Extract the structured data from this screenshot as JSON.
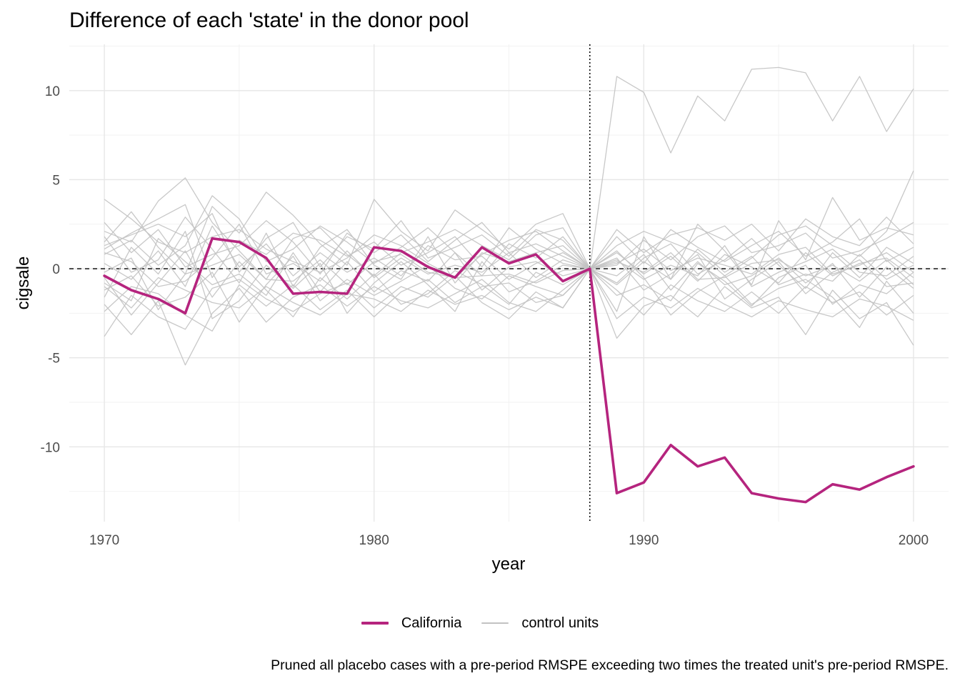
{
  "chart_data": {
    "type": "line",
    "title": "Difference of each 'state' in the donor pool",
    "xlabel": "year",
    "ylabel": "cigsale",
    "caption": "Pruned all placebo cases with a pre-period RMSPE exceeding two times the treated unit's pre-period RMSPE.",
    "xlim": [
      1968.7,
      2001.3
    ],
    "ylim": [
      -14.2,
      12.6
    ],
    "x_ticks": [
      1970,
      1980,
      1990,
      2000
    ],
    "y_ticks": [
      -10,
      -5,
      0,
      5,
      10
    ],
    "treatment_year": 1988,
    "reference_line_y": 0,
    "grid": true,
    "legend_position": "bottom",
    "colors": {
      "treated": "#b5247e",
      "control": "#c2c2c2"
    },
    "legend": [
      {
        "label": "California",
        "style": "thick",
        "color": "#b5247e"
      },
      {
        "label": "control units",
        "style": "thin",
        "color": "#c2c2c2"
      }
    ],
    "x": [
      1970,
      1971,
      1972,
      1973,
      1974,
      1975,
      1976,
      1977,
      1978,
      1979,
      1980,
      1981,
      1982,
      1983,
      1984,
      1985,
      1986,
      1987,
      1988,
      1989,
      1990,
      1991,
      1992,
      1993,
      1994,
      1995,
      1996,
      1997,
      1998,
      1999,
      2000
    ],
    "series": [
      {
        "name": "California",
        "treated": true,
        "values": [
          -0.4,
          -1.2,
          -1.7,
          -2.5,
          1.7,
          1.5,
          0.6,
          -1.4,
          -1.3,
          -1.4,
          1.2,
          1.0,
          0.1,
          -0.5,
          1.2,
          0.3,
          0.8,
          -0.7,
          0.0,
          -12.6,
          -12.0,
          -9.9,
          -11.1,
          -10.6,
          -12.6,
          -12.9,
          -13.1,
          -12.1,
          -12.4,
          -11.7,
          -11.1
        ]
      },
      {
        "values": [
          3.9,
          2.8,
          1.5,
          0.9,
          1.8,
          2.2,
          1.1,
          0.4,
          -0.2,
          0.6,
          1.9,
          1.3,
          0.3,
          -0.5,
          0.8,
          1.6,
          2.1,
          1.0,
          0.0,
          10.8,
          9.9,
          6.5,
          9.7,
          8.3,
          11.2,
          11.3,
          11.0,
          8.3,
          10.8,
          7.7,
          10.1
        ]
      },
      {
        "values": [
          2.1,
          1.5,
          3.8,
          5.1,
          2.6,
          1.0,
          -0.6,
          1.7,
          2.3,
          0.8,
          -0.4,
          0.9,
          1.5,
          2.2,
          1.3,
          0.5,
          1.9,
          2.3,
          0.0,
          1.3,
          2.1,
          1.5,
          0.9,
          -0.4,
          0.6,
          1.9,
          2.4,
          1.3,
          0.7,
          2.1,
          5.5
        ]
      },
      {
        "values": [
          -2.0,
          -3.7,
          -1.8,
          -5.4,
          -2.5,
          -1.1,
          -3.0,
          -1.6,
          -0.9,
          -2.1,
          -1.0,
          -1.8,
          -2.2,
          -1.4,
          -0.6,
          -1.9,
          -2.4,
          -1.2,
          0.0,
          -3.9,
          -2.1,
          -1.5,
          -2.7,
          -1.0,
          -2.2,
          -1.6,
          -3.7,
          -1.2,
          -2.8,
          -1.9,
          -4.3
        ]
      },
      {
        "values": [
          1.5,
          3.2,
          1.2,
          -0.3,
          3.5,
          2.0,
          4.3,
          3.0,
          1.4,
          0.2,
          3.9,
          2.1,
          1.0,
          3.3,
          2.2,
          1.1,
          2.5,
          3.1,
          0.0,
          -2.4,
          1.8,
          -0.6,
          2.5,
          1.0,
          -0.9,
          2.7,
          0.5,
          4.0,
          1.6,
          2.3,
          1.9
        ]
      },
      {
        "values": [
          -3.8,
          -1.5,
          -2.7,
          -3.4,
          -1.1,
          -0.6,
          -1.7,
          -2.4,
          -1.4,
          -0.8,
          -2.2,
          -1.0,
          -1.6,
          -0.4,
          -1.9,
          -2.8,
          -1.3,
          -2.2,
          0.0,
          1.0,
          -0.5,
          -2.6,
          -1.3,
          -0.4,
          -2.0,
          -1.1,
          -0.6,
          -1.6,
          -3.3,
          -0.7,
          -2.5
        ]
      },
      {
        "values": [
          0.8,
          1.6,
          0.2,
          1.3,
          4.1,
          2.8,
          0.4,
          1.1,
          2.4,
          1.5,
          0.3,
          1.2,
          2.3,
          0.9,
          -0.4,
          1.4,
          0.6,
          1.8,
          0.0,
          -0.8,
          0.6,
          1.4,
          -0.3,
          0.5,
          1.7,
          0.2,
          -1.1,
          0.9,
          -0.5,
          1.2,
          0.3
        ]
      },
      {
        "values": [
          -1.2,
          -0.4,
          -2.1,
          -1.6,
          -0.2,
          -3.0,
          -0.9,
          0.7,
          -1.8,
          -0.6,
          -1.5,
          -0.7,
          0.2,
          -1.1,
          -1.7,
          -0.4,
          -1.0,
          -1.5,
          0.0,
          0.6,
          -1.2,
          -0.3,
          0.8,
          -1.7,
          -0.6,
          0.4,
          -1.4,
          -0.2,
          0.5,
          -1.0,
          -0.8
        ]
      },
      {
        "values": [
          2.6,
          0.9,
          2.2,
          0.1,
          0.8,
          1.3,
          2.7,
          1.5,
          -0.3,
          2.0,
          0.9,
          1.9,
          0.4,
          1.6,
          2.6,
          0.9,
          1.4,
          0.7,
          0.0,
          1.8,
          0.3,
          2.2,
          1.2,
          0.4,
          1.3,
          2.1,
          0.7,
          1.5,
          2.8,
          0.4,
          1.2
        ]
      },
      {
        "values": [
          -0.5,
          -2.6,
          -0.8,
          1.0,
          -1.6,
          0.4,
          -1.2,
          -2.7,
          -0.5,
          -1.7,
          -0.3,
          -2.0,
          -1.4,
          -0.1,
          -0.9,
          -2.0,
          -0.2,
          -0.9,
          0.0,
          -1.5,
          -0.9,
          -1.8,
          0.3,
          -0.7,
          -2.1,
          -0.5,
          0.2,
          -2.0,
          -0.9,
          -1.4,
          -0.2
        ]
      },
      {
        "values": [
          1.1,
          2.0,
          2.8,
          3.6,
          -0.5,
          1.6,
          0.8,
          2.0,
          1.6,
          0.7,
          1.5,
          0.2,
          0.9,
          1.8,
          0.1,
          2.3,
          1.1,
          0.3,
          0.0,
          0.2,
          1.6,
          0.5,
          1.8,
          2.4,
          0.9,
          1.3,
          2.0,
          0.6,
          1.0,
          1.7,
          2.6
        ]
      },
      {
        "values": [
          -2.4,
          -1.0,
          -1.4,
          -2.6,
          -3.5,
          -0.9,
          -2.1,
          -0.9,
          -2.3,
          -1.2,
          -2.7,
          -1.3,
          -0.6,
          -1.9,
          -1.0,
          -0.8,
          -1.9,
          -1.5,
          0.0,
          -1.2,
          -2.6,
          -0.9,
          -1.8,
          -2.4,
          -1.3,
          -2.5,
          -1.0,
          -1.9,
          -1.3,
          -2.6,
          -1.5
        ]
      },
      {
        "values": [
          0.3,
          -0.6,
          1.0,
          -1.0,
          2.4,
          0.1,
          1.4,
          -0.4,
          0.9,
          -0.2,
          0.6,
          -0.4,
          1.3,
          0.5,
          0.7,
          -0.6,
          0.3,
          0.9,
          0.0,
          0.9,
          -0.3,
          0.7,
          -0.7,
          0.8,
          0.1,
          -0.8,
          0.9,
          -0.4,
          0.3,
          0.6,
          -0.5
        ]
      },
      {
        "values": [
          -1.6,
          1.2,
          -0.3,
          2.1,
          -2.8,
          -1.8,
          0.2,
          -1.1,
          0.3,
          -2.5,
          -0.8,
          0.4,
          -0.9,
          -2.4,
          0.4,
          -1.3,
          -0.7,
          0.2,
          0.0,
          -0.4,
          0.8,
          -1.2,
          0.4,
          -0.9,
          -0.4,
          0.6,
          -0.8,
          0.3,
          -1.6,
          0.1,
          -1.1
        ]
      },
      {
        "values": [
          0.9,
          0.4,
          -1.0,
          -0.7,
          0.6,
          2.5,
          -0.3,
          0.3,
          -0.7,
          1.0,
          -0.5,
          0.6,
          -0.3,
          0.2,
          -0.2,
          0.9,
          -0.5,
          0.5,
          0.0,
          0.5,
          -0.6,
          0.2,
          -0.4,
          1.3,
          -1.0,
          -0.2,
          0.4,
          1.1,
          -0.2,
          -0.4,
          0.7
        ]
      },
      {
        "values": [
          -0.8,
          -1.8,
          1.7,
          0.4,
          -0.9,
          -0.3,
          -1.5,
          0.9,
          -1.3,
          0.4,
          -1.3,
          -0.1,
          -0.7,
          0.9,
          -1.2,
          0.1,
          0.4,
          -0.4,
          0.0,
          -0.9,
          0.4,
          -0.6,
          1.1,
          -0.2,
          0.7,
          -0.9,
          -0.3,
          -0.7,
          0.8,
          -0.6,
          0.2
        ]
      },
      {
        "values": [
          1.8,
          -0.2,
          0.5,
          2.9,
          1.1,
          -0.8,
          2.0,
          -1.0,
          1.2,
          2.2,
          0.2,
          -0.6,
          1.8,
          -0.8,
          0.9,
          0.4,
          0.9,
          1.3,
          0.0,
          0.3,
          1.1,
          -0.1,
          0.6,
          0.2,
          -0.3,
          0.8,
          1.2,
          -0.3,
          0.2,
          0.9,
          -0.2
        ]
      },
      {
        "values": [
          -0.2,
          0.6,
          -2.3,
          -0.3,
          0.2,
          0.8,
          -0.6,
          -0.7,
          0.5,
          -0.9,
          0.4,
          0.8,
          -0.2,
          -0.5,
          -0.4,
          -0.3,
          -0.8,
          -0.1,
          0.0,
          0.4,
          -0.2,
          0.9,
          -0.6,
          -0.5,
          0.3,
          0.5,
          -0.4,
          0.2,
          -0.7,
          0.5,
          -0.9
        ]
      },
      {
        "values": [
          1.3,
          1.9,
          2.5,
          1.8,
          3.1,
          -0.2,
          1.7,
          2.6,
          0.1,
          1.8,
          1.1,
          2.7,
          0.6,
          1.2,
          1.9,
          0.7,
          2.2,
          1.6,
          0.0,
          2.2,
          0.9,
          1.9,
          2.3,
          1.6,
          2.5,
          1.0,
          2.8,
          1.8,
          1.3,
          2.9,
          1.4
        ]
      },
      {
        "values": [
          -1.0,
          -2.2,
          -0.5,
          -1.2,
          -1.9,
          -2.2,
          -1.0,
          -1.9,
          -2.6,
          -1.4,
          -1.7,
          -2.4,
          -1.2,
          -2.0,
          -1.5,
          -2.3,
          -1.6,
          -2.2,
          0.0,
          -2.8,
          -1.6,
          -2.2,
          -1.1,
          -2.0,
          -2.7,
          -1.8,
          -2.3,
          -2.7,
          -1.7,
          -2.1,
          -2.9
        ]
      }
    ]
  }
}
